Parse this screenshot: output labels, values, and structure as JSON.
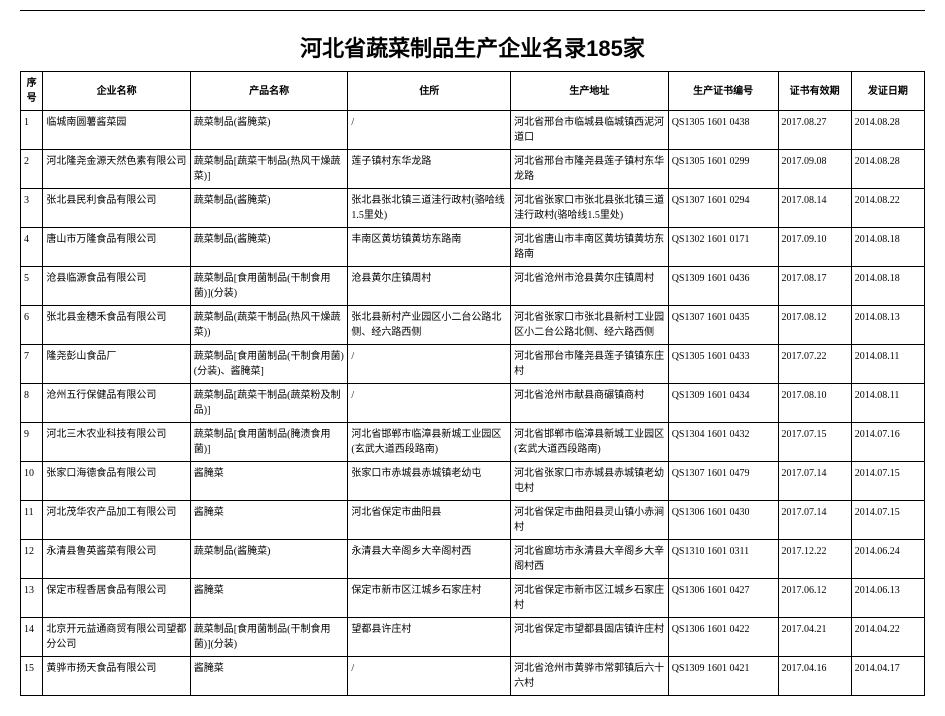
{
  "title": "河北省蔬菜制品生产企业名录185家",
  "columns": [
    "序号",
    "企业名称",
    "产品名称",
    "住所",
    "生产地址",
    "生产证书编号",
    "证书有效期",
    "发证日期"
  ],
  "rows": [
    [
      "1",
      "临城南圆薯酱菜园",
      "蔬菜制品(酱腌菜)",
      "/",
      "河北省邢台市临城县临城镇西泥河道口",
      "QS1305 1601 0438",
      "2017.08.27",
      "2014.08.28"
    ],
    [
      "2",
      "河北隆尧金源天然色素有限公司",
      "蔬菜制品[蔬菜干制品(热风干燥蔬菜)]",
      "莲子镇村东华龙路",
      "河北省邢台市隆尧县莲子镇村东华龙路",
      "QS1305 1601 0299",
      "2017.09.08",
      "2014.08.28"
    ],
    [
      "3",
      "张北县民利食品有限公司",
      "蔬菜制品(酱腌菜)",
      "张北县张北镇三道洼行政村(骆哈线1.5里处)",
      "河北省张家口市张北县张北镇三道洼行政村(骆哈线1.5里处)",
      "QS1307 1601 0294",
      "2017.08.14",
      "2014.08.22"
    ],
    [
      "4",
      "唐山市万隆食品有限公司",
      "蔬菜制品(酱腌菜)",
      "丰南区黄坊镇黄坊东路南",
      "河北省唐山市丰南区黄坊镇黄坊东路南",
      "QS1302 1601 0171",
      "2017.09.10",
      "2014.08.18"
    ],
    [
      "5",
      "沧县临源食品有限公司",
      "蔬菜制品[食用菌制品(干制食用菌)](分装)",
      "沧县黄尔庄镇周村",
      "河北省沧州市沧县黄尔庄镇周村",
      "QS1309 1601 0436",
      "2017.08.17",
      "2014.08.18"
    ],
    [
      "6",
      "张北县金穗禾食品有限公司",
      "蔬菜制品(蔬菜干制品(热风干燥蔬菜))",
      "张北县新村产业园区小二台公路北侧、经六路西侧",
      "河北省张家口市张北县新村工业园区小二台公路北侧、经六路西侧",
      "QS1307 1601 0435",
      "2017.08.12",
      "2014.08.13"
    ],
    [
      "7",
      "隆尧彭山食品厂",
      "蔬菜制品[食用菌制品(干制食用菌)(分装)、酱腌菜]",
      "/",
      "河北省邢台市隆尧县莲子镇镇东庄村",
      "QS1305 1601 0433",
      "2017.07.22",
      "2014.08.11"
    ],
    [
      "8",
      "沧州五行保健品有限公司",
      "蔬菜制品[蔬菜干制品(蔬菜粉及制品)]",
      "/",
      "河北省沧州市献县商碾镇商村",
      "QS1309 1601 0434",
      "2017.08.10",
      "2014.08.11"
    ],
    [
      "9",
      "河北三木农业科技有限公司",
      "蔬菜制品[食用菌制品(腌渍食用菌)]",
      "河北省邯郸市临漳县新城工业园区(玄武大道西段路南)",
      "河北省邯郸市临漳县新城工业园区(玄武大道西段路南)",
      "QS1304 1601 0432",
      "2017.07.15",
      "2014.07.16"
    ],
    [
      "10",
      "张家口海德食品有限公司",
      "酱腌菜",
      "张家口市赤城县赤城镇老幼屯",
      "河北省张家口市赤城县赤城镇老幼屯村",
      "QS1307 1601 0479",
      "2017.07.14",
      "2014.07.15"
    ],
    [
      "11",
      "河北茂华农产品加工有限公司",
      "酱腌菜",
      "河北省保定市曲阳县",
      "河北省保定市曲阳县灵山镇小赤涧村",
      "QS1306 1601 0430",
      "2017.07.14",
      "2014.07.15"
    ],
    [
      "12",
      "永清县鲁英酱菜有限公司",
      "蔬菜制品(酱腌菜)",
      "永清县大辛阁乡大辛阁村西",
      "河北省廊坊市永清县大辛阁乡大辛阁村西",
      "QS1310 1601 0311",
      "2017.12.22",
      "2014.06.24"
    ],
    [
      "13",
      "保定市程香居食品有限公司",
      "酱腌菜",
      "保定市新市区江城乡石家庄村",
      "河北省保定市新市区江城乡石家庄村",
      "QS1306 1601 0427",
      "2017.06.12",
      "2014.06.13"
    ],
    [
      "14",
      "北京开元益通商贸有限公司望都分公司",
      "蔬菜制品[食用菌制品(干制食用菌)](分装)",
      "望都县许庄村",
      "河北省保定市望都县固店镇许庄村",
      "QS1306 1601 0422",
      "2017.04.21",
      "2014.04.22"
    ],
    [
      "15",
      "黄骅市扬天食品有限公司",
      "酱腌菜",
      "/",
      "河北省沧州市黄骅市常郭镇后六十六村",
      "QS1309 1601 0421",
      "2017.04.16",
      "2014.04.17"
    ]
  ]
}
